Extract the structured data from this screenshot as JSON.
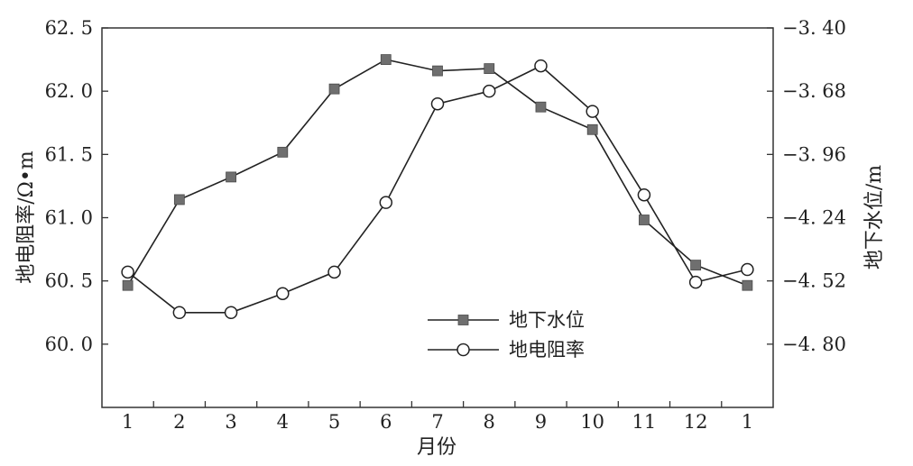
{
  "chart_data": {
    "type": "line",
    "categories": [
      "1",
      "2",
      "3",
      "4",
      "5",
      "6",
      "7",
      "8",
      "9",
      "10",
      "11",
      "12",
      "1"
    ],
    "xlabel": "月份",
    "ylabel_left": "地电阻率/Ω•m",
    "ylabel_right": "地下水位/m",
    "y_left": {
      "lim": [
        60.0,
        62.5
      ],
      "plot_lim": [
        59.5,
        62.5
      ],
      "ticks": [
        60.0,
        60.5,
        61.0,
        61.5,
        62.0,
        62.5
      ],
      "tick_labels": [
        "60. 0",
        "60. 5",
        "61. 0",
        "61. 5",
        "62. 0",
        "62. 5"
      ]
    },
    "y_right": {
      "lim": [
        -4.8,
        -3.4
      ],
      "plot_lim": [
        -5.08,
        -3.4
      ],
      "ticks": [
        -4.8,
        -4.52,
        -4.24,
        -3.96,
        -3.68,
        -3.4
      ],
      "tick_labels": [
        "−4. 80",
        "−4. 52",
        "−4. 24",
        "−3. 96",
        "−3. 68",
        "−3. 40"
      ]
    },
    "grid": false,
    "legend_position": "lower-center",
    "series": [
      {
        "name": "地下水位",
        "axis": "right",
        "marker": "square",
        "values": [
          -4.54,
          -4.16,
          -4.06,
          -3.95,
          -3.67,
          -3.54,
          -3.59,
          -3.58,
          -3.75,
          -3.85,
          -4.25,
          -4.45,
          -4.54
        ]
      },
      {
        "name": "地电阻率",
        "axis": "left",
        "marker": "circle",
        "values": [
          60.57,
          60.25,
          60.25,
          60.4,
          60.57,
          61.12,
          61.9,
          62.0,
          62.2,
          61.84,
          61.18,
          60.49,
          60.59
        ]
      }
    ]
  }
}
